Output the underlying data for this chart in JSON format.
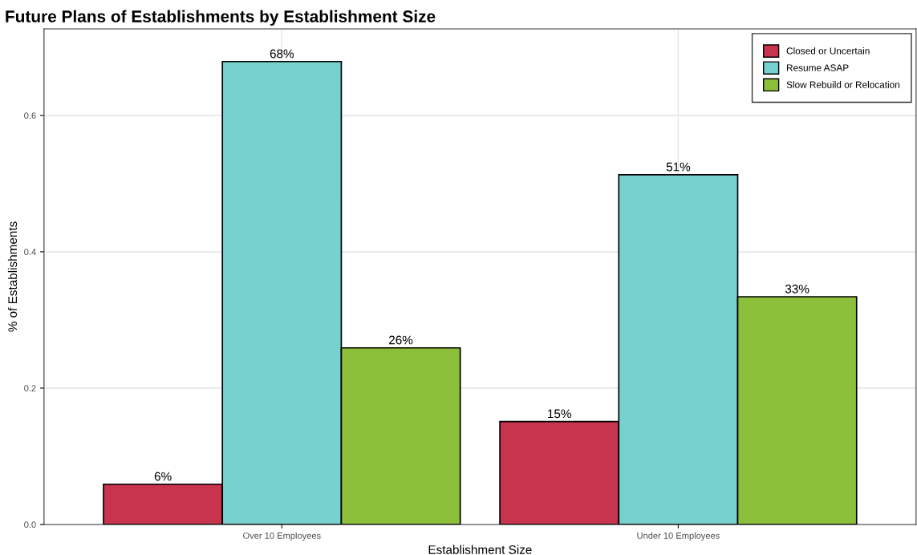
{
  "chart_data": {
    "type": "bar",
    "title": "Future Plans of Establishments by Establishment Size",
    "xlabel": "Establishment Size",
    "ylabel": "% of Establishments",
    "categories": [
      "Over 10 Employees",
      "Under 10 Employees"
    ],
    "series": [
      {
        "name": "Closed or Uncertain",
        "color": "#c8334d",
        "values": [
          0.059,
          0.151
        ],
        "value_labels": [
          "6%",
          "15%"
        ]
      },
      {
        "name": "Resume ASAP",
        "color": "#77d2cf",
        "values": [
          0.679,
          0.513
        ],
        "value_labels": [
          "68%",
          "51%"
        ]
      },
      {
        "name": "Slow Rebuild or Relocation",
        "color": "#8dc03a",
        "values": [
          0.259,
          0.334
        ],
        "value_labels": [
          "26%",
          "33%"
        ]
      }
    ],
    "ylim": [
      0,
      0.727
    ],
    "yticks": [
      {
        "value": 0,
        "label": "0.0"
      },
      0.2,
      0.4,
      0.6
    ],
    "grid": true,
    "legend": "top right"
  }
}
